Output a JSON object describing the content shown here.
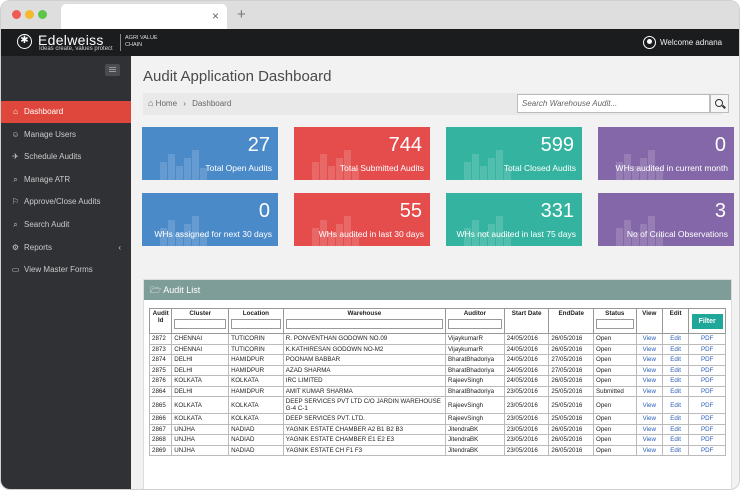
{
  "window": {
    "tab_close": "×",
    "new_tab": "+"
  },
  "header": {
    "brand": "Edelweiss",
    "tagline": "Ideas create, values protect",
    "sub_brand": "AGRI VALUE CHAIN",
    "welcome": "Welcome adnana"
  },
  "sidebar": {
    "items": [
      {
        "label": "Dashboard",
        "icon": "⌂"
      },
      {
        "label": "Manage Users",
        "icon": "☺"
      },
      {
        "label": "Schedule Audits",
        "icon": "✈"
      },
      {
        "label": "Manage ATR",
        "icon": "⌕"
      },
      {
        "label": "Approve/Close Audits",
        "icon": "⚐"
      },
      {
        "label": "Search Audit",
        "icon": "⌕"
      },
      {
        "label": "Reports",
        "icon": "⚙",
        "caret": "‹"
      },
      {
        "label": "View Master Forms",
        "icon": "▭"
      }
    ]
  },
  "main": {
    "title": "Audit Application Dashboard",
    "breadcrumb": {
      "home": "Home",
      "sep": "›",
      "current": "Dashboard"
    },
    "search_placeholder": "Search Warehouse Audit..."
  },
  "stats": [
    {
      "value": "27",
      "label": "Total Open Audits",
      "color": "#4a8ac9"
    },
    {
      "value": "744",
      "label": "Total Submitted Audits",
      "color": "#e54d4d"
    },
    {
      "value": "599",
      "label": "Total Closed Audits",
      "color": "#33b3a0"
    },
    {
      "value": "0",
      "label": "WHs audited in current month",
      "color": "#8467a8"
    },
    {
      "value": "0",
      "label": "WHs assigned for next 30 days",
      "color": "#4a8ac9"
    },
    {
      "value": "55",
      "label": "WHs audited in last 30 days",
      "color": "#e54d4d"
    },
    {
      "value": "331",
      "label": "WHs not audited in last 75 days",
      "color": "#33b3a0"
    },
    {
      "value": "3",
      "label": "No of Critical Observations",
      "color": "#8467a8"
    }
  ],
  "audit_list": {
    "title": "Audit List",
    "columns": [
      "Audit Id",
      "Cluster",
      "Location",
      "Warehouse",
      "Auditor",
      "Start Date",
      "EndDate",
      "Status",
      "View",
      "Edit"
    ],
    "filter_label": "Filter",
    "rows": [
      [
        "2872",
        "CHENNAI",
        "TUTICORIN",
        "R. PONVENTHAN GODOWN NO.09",
        "VijaykumarR",
        "24/05/2016",
        "26/05/2016",
        "Open",
        "View",
        "Edit",
        "PDF"
      ],
      [
        "2873",
        "CHENNAI",
        "TUTICORIN",
        "K.KATHIRESAN GODOWN NO-M2",
        "VijaykumarR",
        "24/05/2016",
        "26/05/2016",
        "Open",
        "View",
        "Edit",
        "PDF"
      ],
      [
        "2874",
        "DELHI",
        "HAMIDPUR",
        "POONAM BABBAR",
        "BharatBhadoriya",
        "24/05/2016",
        "27/05/2016",
        "Open",
        "View",
        "Edit",
        "PDF"
      ],
      [
        "2875",
        "DELHI",
        "HAMIDPUR",
        "AZAD SHARMA",
        "BharatBhadoriya",
        "24/05/2016",
        "27/05/2016",
        "Open",
        "View",
        "Edit",
        "PDF"
      ],
      [
        "2876",
        "KOLKATA",
        "KOLKATA",
        "IRC LIMITED",
        "RajeevSingh",
        "24/05/2016",
        "26/05/2016",
        "Open",
        "View",
        "Edit",
        "PDF"
      ],
      [
        "2864",
        "DELHI",
        "HAMIDPUR",
        "AMIT KUMAR SHARMA",
        "BharatBhadoriya",
        "23/05/2016",
        "25/05/2016",
        "Submitted",
        "View",
        "Edit",
        "PDF"
      ],
      [
        "2865",
        "KOLKATA",
        "KOLKATA",
        "DEEP SERVICES PVT LTD C/O JARDIN WAREHOUSE G-4 C-1",
        "RajeevSingh",
        "23/05/2016",
        "25/05/2016",
        "Open",
        "View",
        "Edit",
        "PDF"
      ],
      [
        "2866",
        "KOLKATA",
        "KOLKATA",
        "DEEP SERVICES PVT. LTD.",
        "RajeevSingh",
        "23/05/2016",
        "25/05/2016",
        "Open",
        "View",
        "Edit",
        "PDF"
      ],
      [
        "2867",
        "UNJHA",
        "NADIAD",
        "YAGNIK ESTATE CHAMBER A2 B1 B2 B3",
        "JitendraBK",
        "23/05/2016",
        "26/05/2016",
        "Open",
        "View",
        "Edit",
        "PDF"
      ],
      [
        "2868",
        "UNJHA",
        "NADIAD",
        "YAGNIK ESTATE CHAMBER E1 E2 E3",
        "JitendraBK",
        "23/05/2016",
        "26/05/2016",
        "Open",
        "View",
        "Edit",
        "PDF"
      ],
      [
        "2869",
        "UNJHA",
        "NADIAD",
        "YAGNIK ESTATE CH F1 F3",
        "JitendraBK",
        "23/05/2016",
        "26/05/2016",
        "Open",
        "View",
        "Edit",
        "PDF"
      ]
    ]
  }
}
